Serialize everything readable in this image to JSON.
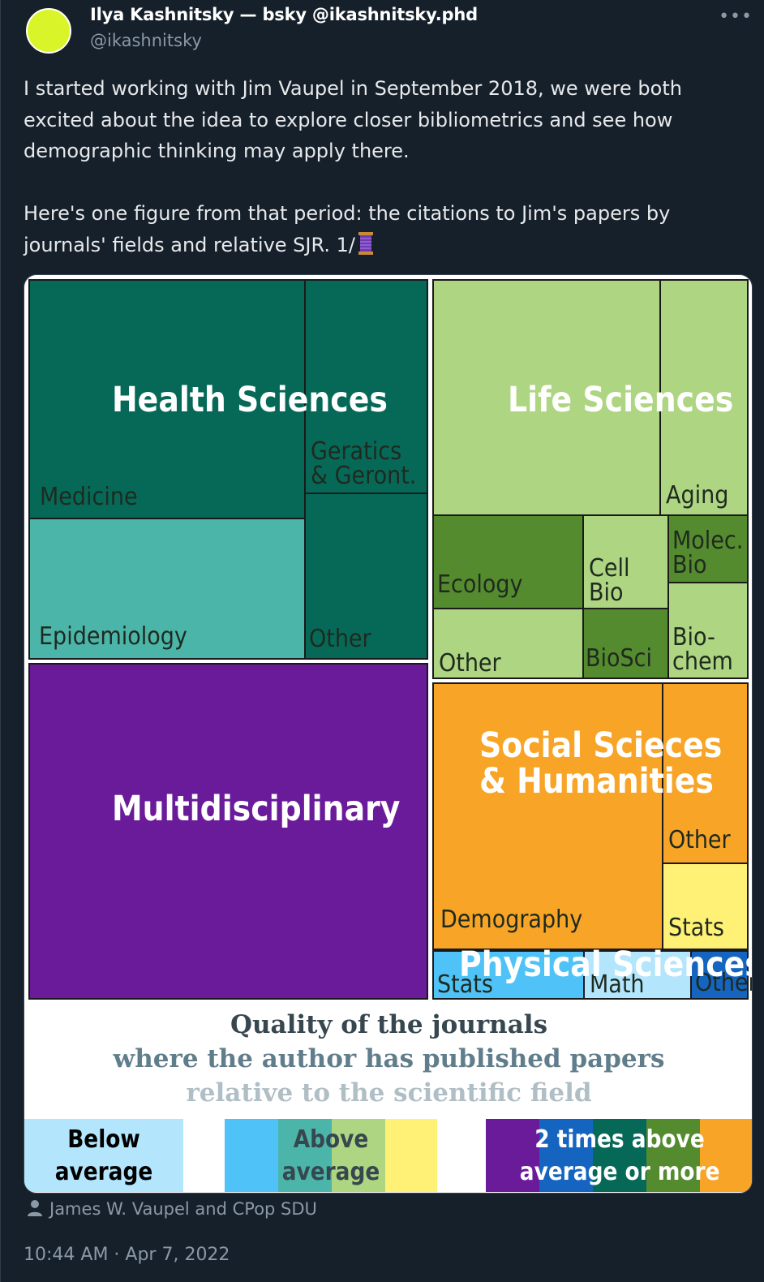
{
  "author": {
    "display_name": "Ilya Kashnitsky — bsky @ikashnitsky.phd",
    "handle": "@ikashnitsky",
    "avatar_color": "#d9f52a"
  },
  "more_label": "•••",
  "tweet": {
    "text": "I started working with Jim Vaupel in September 2018, we were both excited about the idea to explore closer bibliometrics and see how demographic thinking may apply there.\n\nHere's one figure from that period: the citations to Jim's papers by journals' fields and relative SJR. 1/"
  },
  "figure": {
    "groups": {
      "health": "Health Sciences",
      "life": "Life Sciences",
      "multi": "Multidisciplinary",
      "social": "Social Scieces\n& Humanities",
      "physical": "Physical Sciences"
    },
    "tiles": {
      "medicine": "Medicine",
      "geratics": "Geratics\n& Geront.",
      "epidemiology": "Epidemiology",
      "health_other": "Other",
      "aging": "Aging",
      "ecology": "Ecology",
      "cell_bio": "Cell\nBio",
      "molec_bio": "Molec.\nBio",
      "life_other": "Other",
      "biosci": "BioSci",
      "biochem": "Bio-\nchem",
      "social_other": "Other",
      "demography": "Demography",
      "social_stats": "Stats",
      "phys_stats": "Stats",
      "math": "Math",
      "phys_other": "Other"
    },
    "caption": {
      "line1": "Quality of the journals",
      "line2": "where the author has published papers",
      "line3": "relative to the scientific field"
    },
    "legend": {
      "below": "Below\naverage",
      "above": "Above\naverage",
      "twice": "2 times above\naverage or more"
    },
    "colors": {
      "dark_teal": "#066958",
      "teal": "#4cb5aa",
      "light_green": "#aed581",
      "green": "#558b2f",
      "purple": "#6a1b9a",
      "orange": "#f7a427",
      "yellow": "#fff176",
      "light_blue": "#b3e5fc",
      "blue": "#4fc3f7",
      "dark_blue": "#1565c0"
    }
  },
  "attribution": "James W. Vaupel and CPop SDU",
  "timestamp": "10:44 AM · Apr 7, 2022"
}
